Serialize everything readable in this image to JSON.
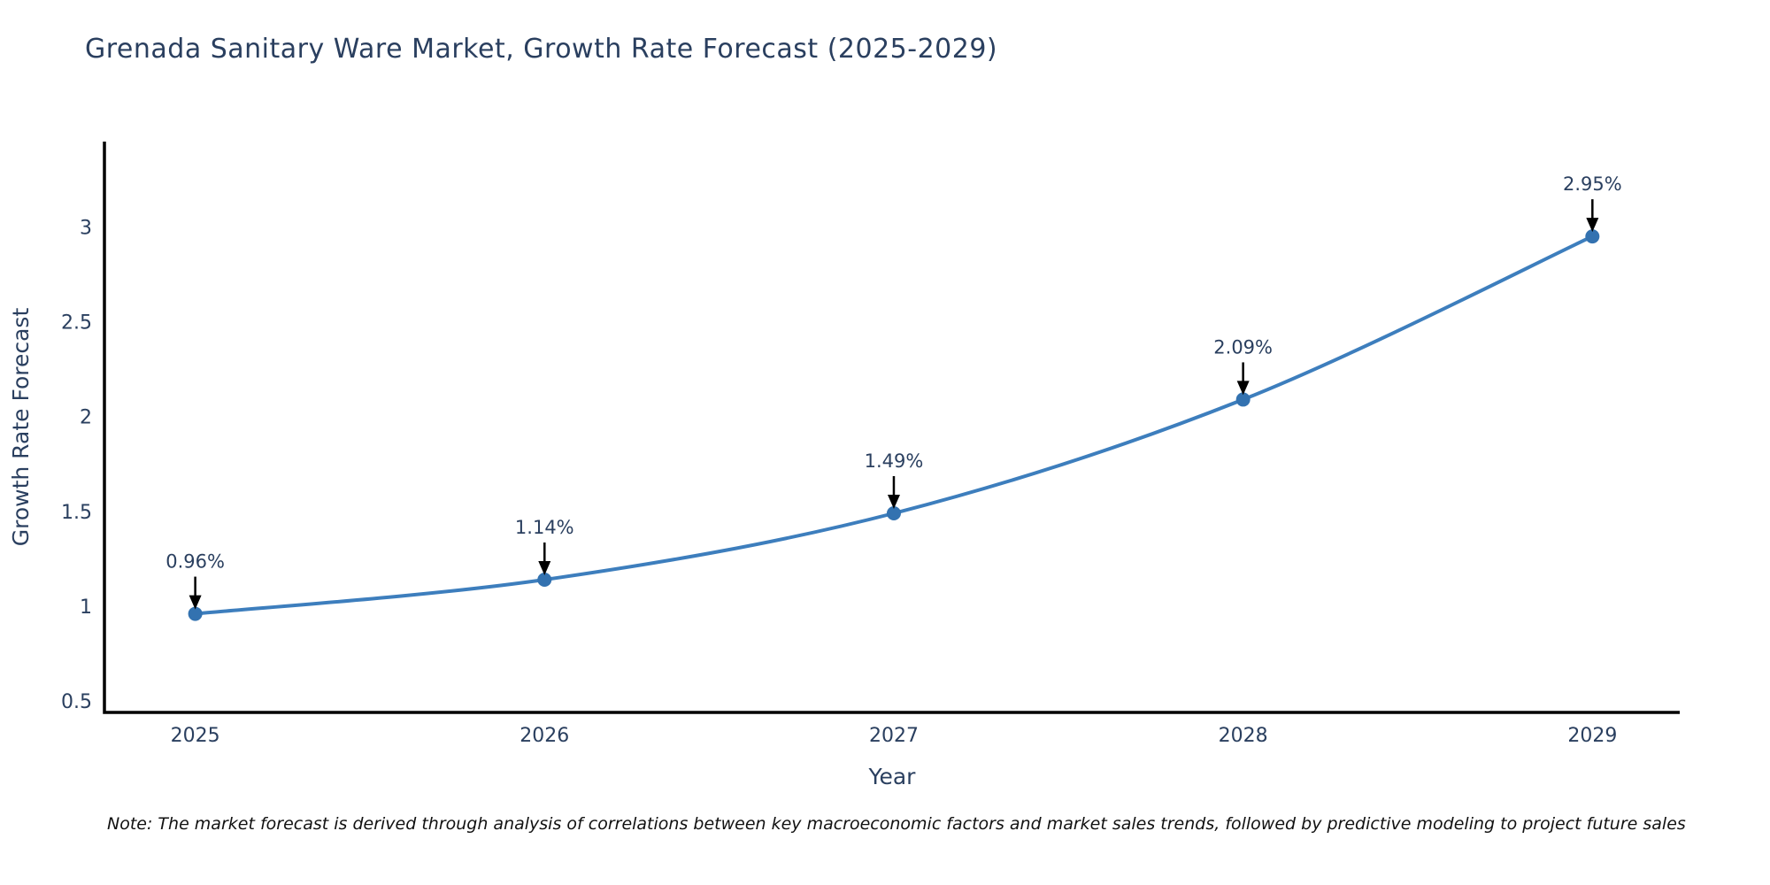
{
  "chart_data": {
    "type": "line",
    "title": "Grenada Sanitary Ware Market, Growth Rate Forecast (2025-2029)",
    "xlabel": "Year",
    "ylabel": "Growth Rate Forecast",
    "x": [
      2025,
      2026,
      2027,
      2028,
      2029
    ],
    "categories": [
      "2025",
      "2026",
      "2027",
      "2028",
      "2029"
    ],
    "series": [
      {
        "name": "Growth Rate Forecast",
        "values": [
          0.96,
          1.14,
          1.49,
          2.09,
          2.95
        ]
      }
    ],
    "point_labels": [
      "0.96%",
      "1.14%",
      "1.49%",
      "2.09%",
      "2.95%"
    ],
    "xticks": [
      "2025",
      "2026",
      "2027",
      "2028",
      "2029"
    ],
    "yticks": [
      0.5,
      1,
      1.5,
      2,
      2.5,
      3
    ],
    "ytick_labels": [
      "0.5",
      "1",
      "1.5",
      "2",
      "2.5",
      "3"
    ],
    "xlim": [
      2024.74,
      2029.25
    ],
    "ylim": [
      0.44,
      3.45
    ],
    "grid": false,
    "legend": "none",
    "line_shape": "spline",
    "line_color": "#3d7ebd",
    "marker_color": "#3372b0",
    "axis_color": "#000000",
    "text_color": "#2a3f5f",
    "annotation_arrow_color": "#000000"
  },
  "note": "Note: The market forecast is derived through analysis of correlations between key macroeconomic factors and market sales trends, followed by predictive modeling to project future sales"
}
